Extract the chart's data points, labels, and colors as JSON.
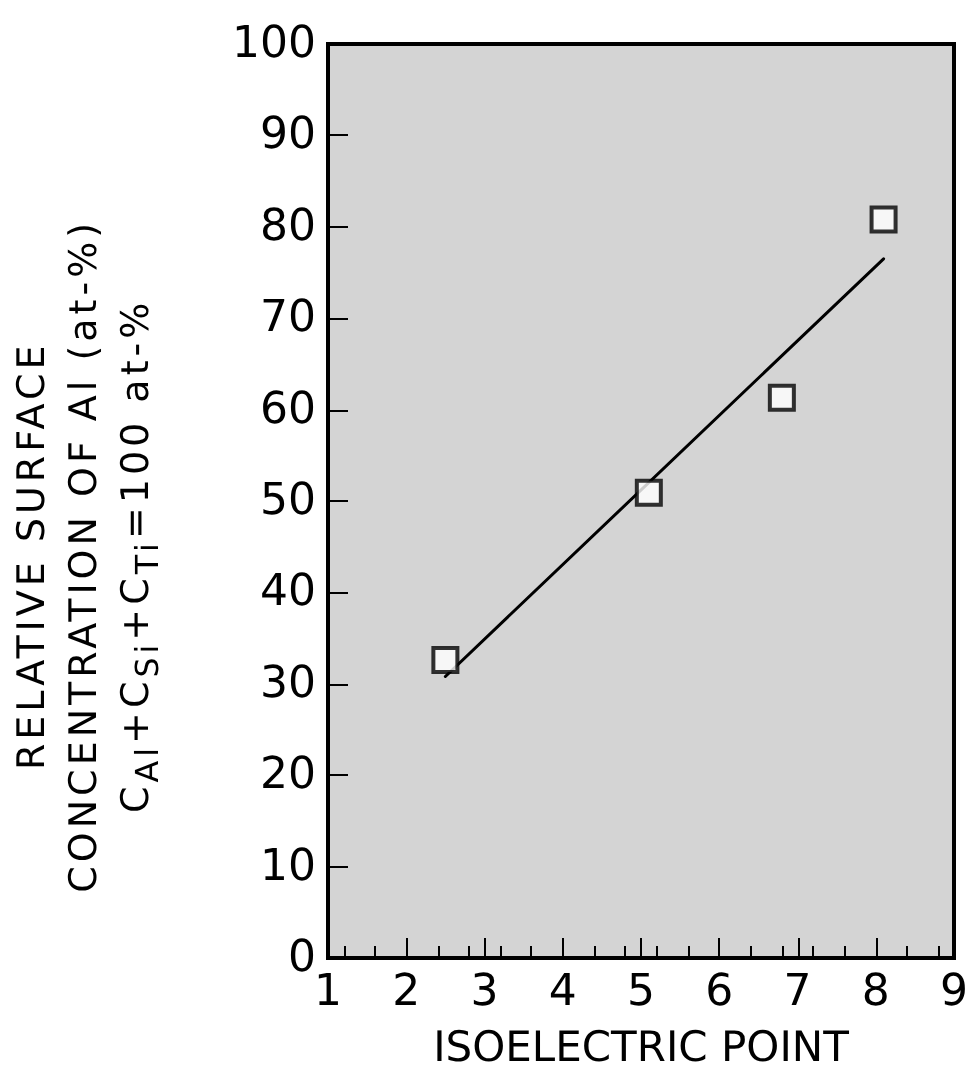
{
  "chart_data": {
    "type": "scatter",
    "xlabel": "ISOELECTRIC POINT",
    "ylabel": "RELATIVE SURFACE\nCONCENTRATION OF Al (at-%)\nC$_{Al}$+C$_{Si}$+C$_{Ti}$=100 at-%",
    "series": [
      {
        "color": "#000000",
        "marker": "square",
        "x": [
          2.5,
          5.1,
          6.8,
          8.1
        ],
        "values": [
          32.6,
          50.9,
          61.3,
          80.8
        ]
      },
      {
        "type": "line",
        "color": "#000000",
        "marker": "none",
        "line_style": "solid",
        "x": [
          2.5,
          8.1
        ],
        "values": [
          30.8,
          76.5
        ]
      }
    ],
    "xlim": [
      1,
      9
    ],
    "xticks": [
      1,
      2,
      3,
      4,
      5,
      6,
      7,
      8,
      9
    ],
    "ylim": [
      0,
      100
    ],
    "yticks": [
      0,
      10,
      20,
      30,
      40,
      50,
      60,
      70,
      80,
      90,
      100
    ],
    "grid": false
  }
}
